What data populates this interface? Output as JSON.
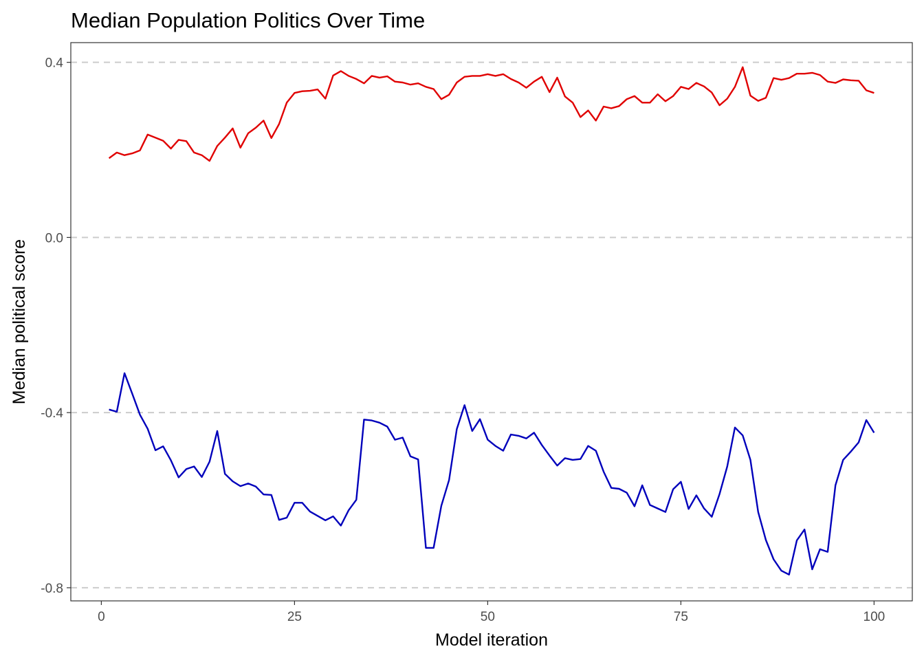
{
  "chart_data": {
    "type": "line",
    "title": "Median Population Politics Over Time",
    "xlabel": "Model iteration",
    "ylabel": "Median political score",
    "xlim": [
      -3.95,
      104.95
    ],
    "ylim": [
      -0.83,
      0.445
    ],
    "x_ticks": [
      0,
      25,
      50,
      75,
      100
    ],
    "x_tick_labels": [
      "0",
      "25",
      "50",
      "75",
      "100"
    ],
    "y_ticks": [
      0.4,
      0.0,
      -0.4,
      -0.8
    ],
    "y_tick_labels": [
      "0.4",
      "0.0",
      "-0.4",
      "-0.8"
    ],
    "grid": "horizontal dashed at y ticks",
    "legend": "none",
    "x": [
      1,
      2,
      3,
      4,
      5,
      6,
      7,
      8,
      9,
      10,
      11,
      12,
      13,
      14,
      15,
      16,
      17,
      18,
      19,
      20,
      21,
      22,
      23,
      24,
      25,
      26,
      27,
      28,
      29,
      30,
      31,
      32,
      33,
      34,
      35,
      36,
      37,
      38,
      39,
      40,
      41,
      42,
      43,
      44,
      45,
      46,
      47,
      48,
      49,
      50,
      51,
      52,
      53,
      54,
      55,
      56,
      57,
      58,
      59,
      60,
      61,
      62,
      63,
      64,
      65,
      66,
      67,
      68,
      69,
      70,
      71,
      72,
      73,
      74,
      75,
      76,
      77,
      78,
      79,
      80,
      81,
      82,
      83,
      84,
      85,
      86,
      87,
      88,
      89,
      90,
      91,
      92,
      93,
      94,
      95,
      96,
      97,
      98,
      99,
      100
    ],
    "series": [
      {
        "color": "#e00000",
        "values": [
          0.181,
          0.194,
          0.188,
          0.192,
          0.199,
          0.235,
          0.228,
          0.221,
          0.203,
          0.223,
          0.22,
          0.194,
          0.188,
          0.175,
          0.209,
          0.228,
          0.249,
          0.205,
          0.238,
          0.251,
          0.267,
          0.227,
          0.259,
          0.308,
          0.33,
          0.334,
          0.335,
          0.338,
          0.317,
          0.37,
          0.38,
          0.369,
          0.362,
          0.352,
          0.369,
          0.365,
          0.368,
          0.356,
          0.354,
          0.349,
          0.352,
          0.344,
          0.339,
          0.316,
          0.326,
          0.354,
          0.367,
          0.369,
          0.369,
          0.373,
          0.369,
          0.373,
          0.362,
          0.354,
          0.342,
          0.356,
          0.367,
          0.332,
          0.365,
          0.322,
          0.308,
          0.275,
          0.29,
          0.267,
          0.299,
          0.295,
          0.3,
          0.316,
          0.323,
          0.308,
          0.308,
          0.327,
          0.311,
          0.323,
          0.344,
          0.339,
          0.353,
          0.345,
          0.331,
          0.302,
          0.317,
          0.344,
          0.389,
          0.324,
          0.312,
          0.319,
          0.364,
          0.36,
          0.364,
          0.374,
          0.374,
          0.376,
          0.371,
          0.356,
          0.353,
          0.361,
          0.359,
          0.358,
          0.336,
          0.33
        ]
      },
      {
        "color": "#0000bb",
        "values": [
          -0.393,
          -0.398,
          -0.31,
          -0.357,
          -0.405,
          -0.437,
          -0.486,
          -0.477,
          -0.509,
          -0.548,
          -0.529,
          -0.523,
          -0.547,
          -0.512,
          -0.442,
          -0.54,
          -0.557,
          -0.568,
          -0.562,
          -0.569,
          -0.587,
          -0.588,
          -0.645,
          -0.64,
          -0.606,
          -0.606,
          -0.626,
          -0.636,
          -0.646,
          -0.637,
          -0.658,
          -0.623,
          -0.599,
          -0.416,
          -0.418,
          -0.423,
          -0.432,
          -0.462,
          -0.457,
          -0.5,
          -0.507,
          -0.709,
          -0.709,
          -0.613,
          -0.554,
          -0.438,
          -0.383,
          -0.442,
          -0.415,
          -0.462,
          -0.476,
          -0.487,
          -0.45,
          -0.453,
          -0.459,
          -0.446,
          -0.474,
          -0.498,
          -0.521,
          -0.504,
          -0.508,
          -0.506,
          -0.476,
          -0.487,
          -0.535,
          -0.572,
          -0.574,
          -0.583,
          -0.614,
          -0.566,
          -0.611,
          -0.619,
          -0.627,
          -0.575,
          -0.558,
          -0.62,
          -0.589,
          -0.619,
          -0.638,
          -0.586,
          -0.523,
          -0.434,
          -0.452,
          -0.508,
          -0.627,
          -0.691,
          -0.735,
          -0.761,
          -0.77,
          -0.692,
          -0.667,
          -0.758,
          -0.712,
          -0.718,
          -0.566,
          -0.508,
          -0.489,
          -0.468,
          -0.417,
          -0.446
        ]
      }
    ]
  }
}
